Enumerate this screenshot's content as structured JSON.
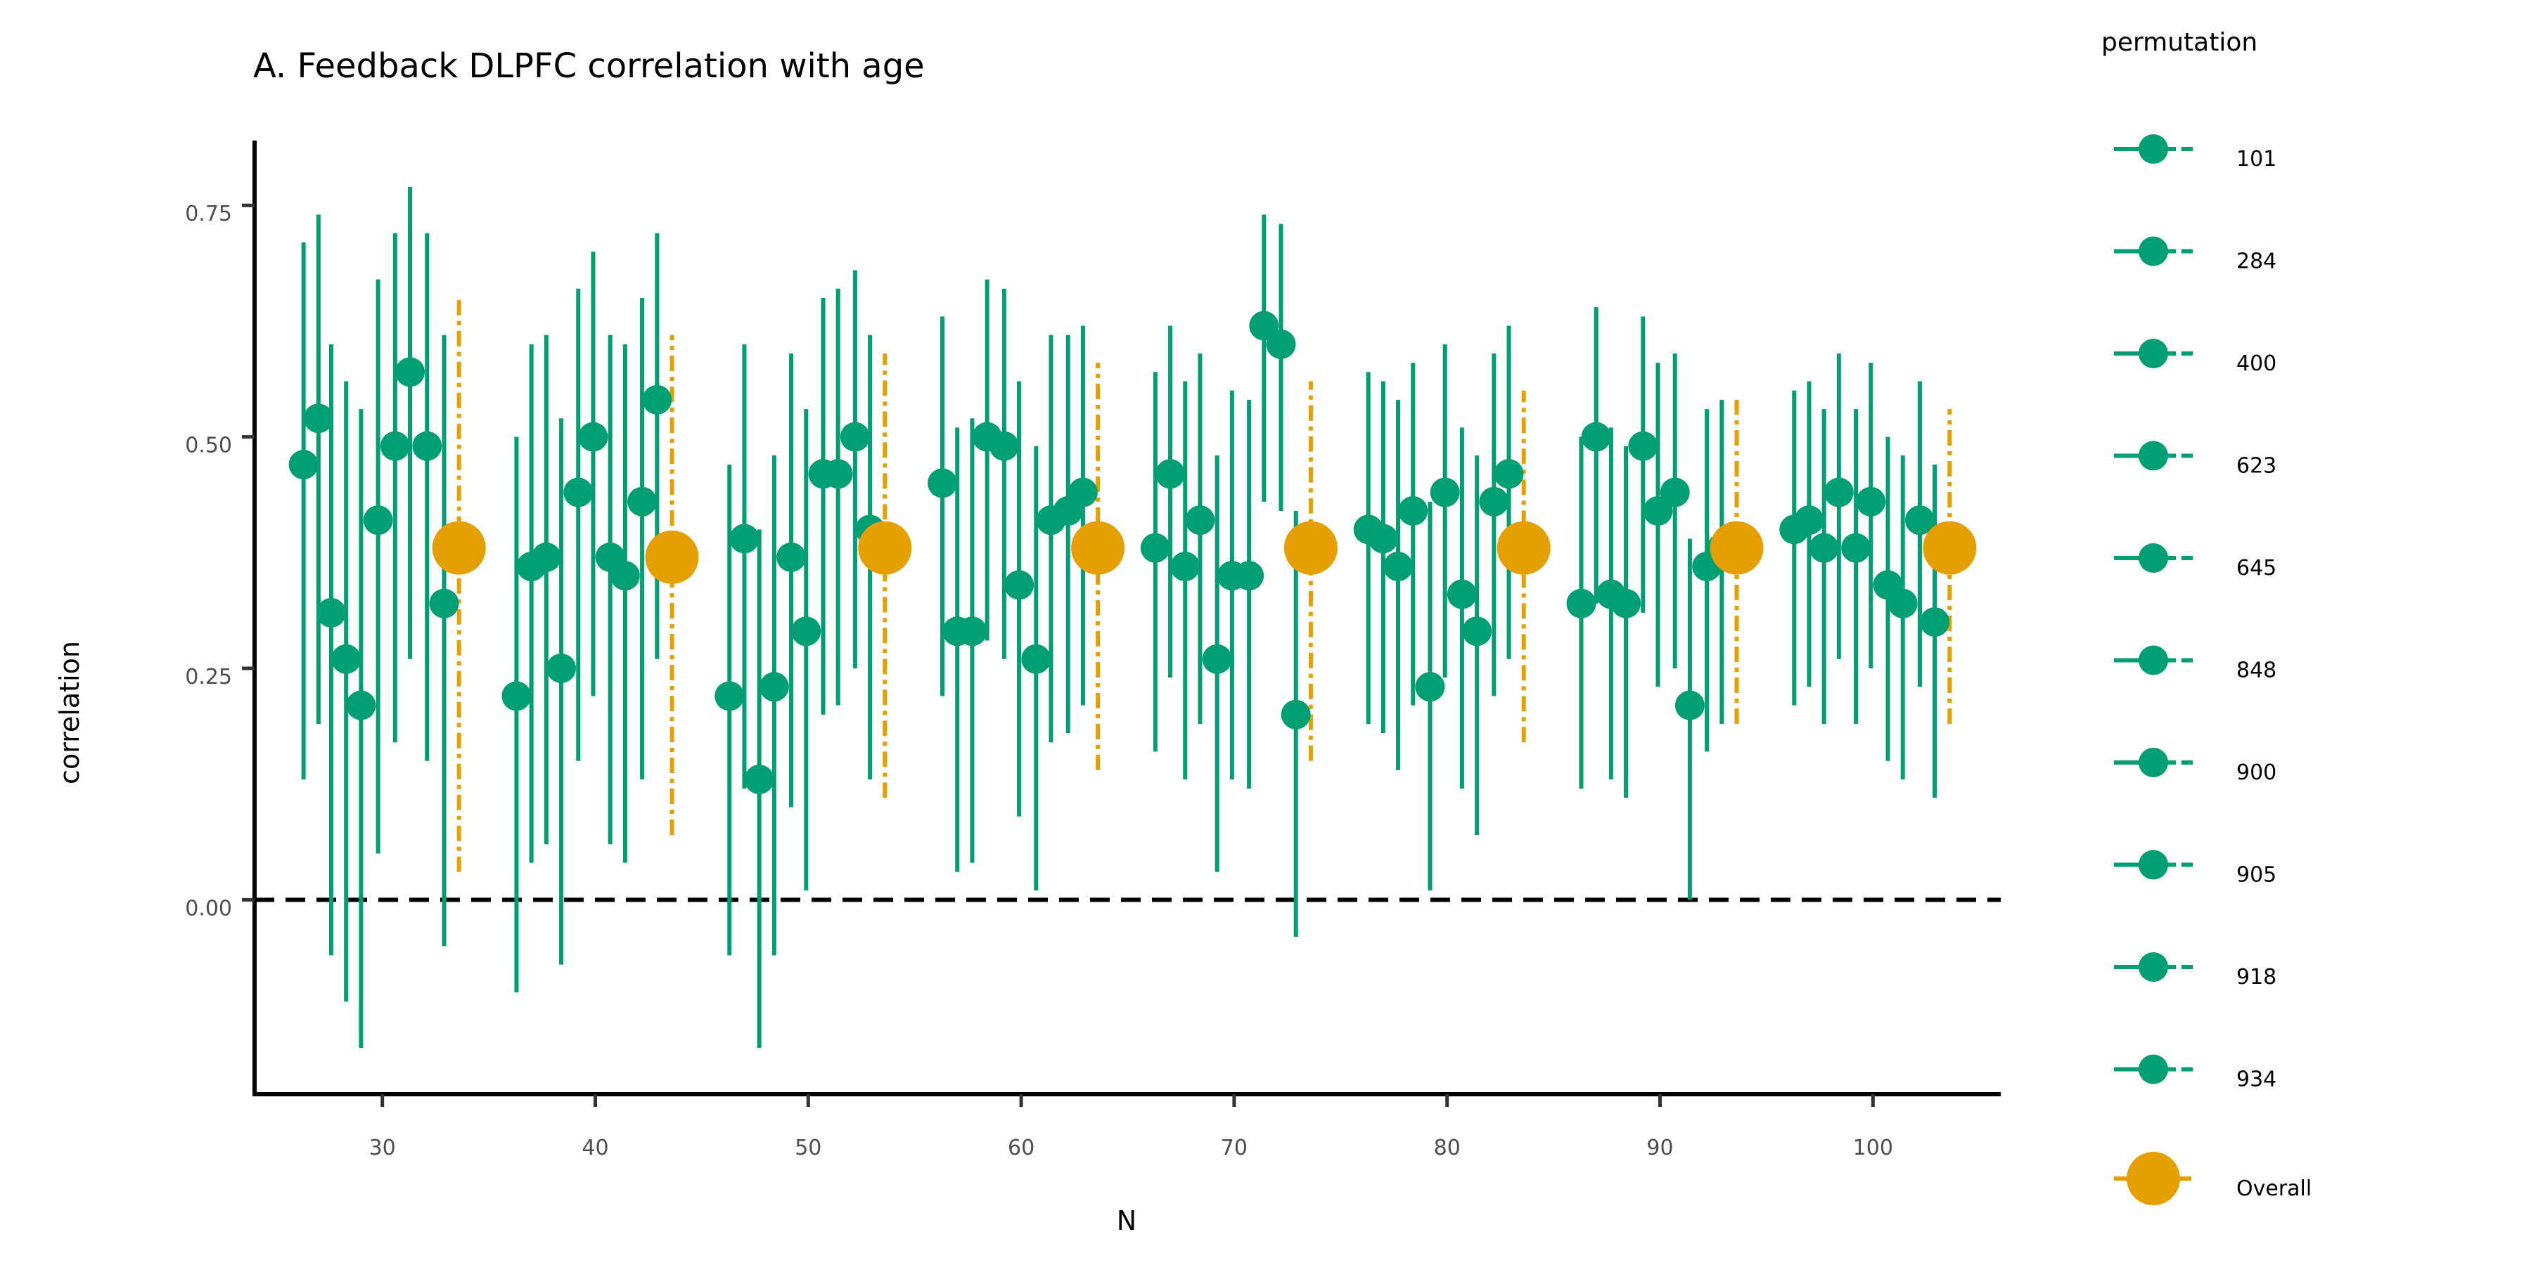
{
  "chart_data": {
    "type": "scatter",
    "title": "A. Feedback DLPFC correlation with age",
    "xlabel": "N",
    "ylabel": "correlation",
    "xlim": [
      24,
      106
    ],
    "ylim": [
      -0.21,
      0.82
    ],
    "x_ticks": [
      "30",
      "40",
      "50",
      "60",
      "70",
      "80",
      "90",
      "100"
    ],
    "x_tick_values": [
      30,
      40,
      50,
      60,
      70,
      80,
      90,
      100
    ],
    "y_ticks": [
      "0.00",
      "0.25",
      "0.50",
      "0.75"
    ],
    "y_tick_values": [
      0,
      0.25,
      0.5,
      0.75
    ],
    "reference_line": {
      "y": 0,
      "style": "dashed",
      "color": "#000000"
    },
    "grid": false,
    "legend": {
      "title": "permutation",
      "position": "right",
      "entries": [
        "101",
        "284",
        "400",
        "623",
        "645",
        "848",
        "900",
        "905",
        "918",
        "934",
        "Overall"
      ]
    },
    "colors": {
      "permutation": "#009E73",
      "overall": "#E69F00"
    },
    "groups": [
      {
        "N": 30,
        "overall": {
          "x": 33.6,
          "y": 0.38,
          "lo": 0.03,
          "hi": 0.65
        },
        "points": [
          {
            "x": 26.3,
            "y": 0.47,
            "lo": 0.13,
            "hi": 0.71
          },
          {
            "x": 27.0,
            "y": 0.52,
            "lo": 0.19,
            "hi": 0.74
          },
          {
            "x": 27.6,
            "y": 0.31,
            "lo": -0.06,
            "hi": 0.6
          },
          {
            "x": 28.3,
            "y": 0.26,
            "lo": -0.11,
            "hi": 0.56
          },
          {
            "x": 29.0,
            "y": 0.21,
            "lo": -0.16,
            "hi": 0.53
          },
          {
            "x": 29.8,
            "y": 0.41,
            "lo": 0.05,
            "hi": 0.67
          },
          {
            "x": 30.6,
            "y": 0.49,
            "lo": 0.17,
            "hi": 0.72
          },
          {
            "x": 31.3,
            "y": 0.57,
            "lo": 0.26,
            "hi": 0.77
          },
          {
            "x": 32.1,
            "y": 0.49,
            "lo": 0.15,
            "hi": 0.72
          },
          {
            "x": 32.9,
            "y": 0.32,
            "lo": -0.05,
            "hi": 0.61
          }
        ]
      },
      {
        "N": 40,
        "overall": {
          "x": 43.6,
          "y": 0.37,
          "lo": 0.07,
          "hi": 0.61
        },
        "points": [
          {
            "x": 36.3,
            "y": 0.22,
            "lo": -0.1,
            "hi": 0.5
          },
          {
            "x": 37.0,
            "y": 0.36,
            "lo": 0.04,
            "hi": 0.6
          },
          {
            "x": 37.7,
            "y": 0.37,
            "lo": 0.06,
            "hi": 0.61
          },
          {
            "x": 38.4,
            "y": 0.25,
            "lo": -0.07,
            "hi": 0.52
          },
          {
            "x": 39.2,
            "y": 0.44,
            "lo": 0.15,
            "hi": 0.66
          },
          {
            "x": 39.9,
            "y": 0.5,
            "lo": 0.22,
            "hi": 0.7
          },
          {
            "x": 40.7,
            "y": 0.37,
            "lo": 0.06,
            "hi": 0.61
          },
          {
            "x": 41.4,
            "y": 0.35,
            "lo": 0.04,
            "hi": 0.6
          },
          {
            "x": 42.2,
            "y": 0.43,
            "lo": 0.13,
            "hi": 0.65
          },
          {
            "x": 42.9,
            "y": 0.54,
            "lo": 0.26,
            "hi": 0.72
          }
        ]
      },
      {
        "N": 50,
        "overall": {
          "x": 53.6,
          "y": 0.38,
          "lo": 0.11,
          "hi": 0.59
        },
        "points": [
          {
            "x": 46.3,
            "y": 0.22,
            "lo": -0.06,
            "hi": 0.47
          },
          {
            "x": 47.0,
            "y": 0.39,
            "lo": 0.12,
            "hi": 0.6
          },
          {
            "x": 47.7,
            "y": 0.13,
            "lo": -0.16,
            "hi": 0.4
          },
          {
            "x": 48.4,
            "y": 0.23,
            "lo": -0.06,
            "hi": 0.48
          },
          {
            "x": 49.2,
            "y": 0.37,
            "lo": 0.1,
            "hi": 0.59
          },
          {
            "x": 49.9,
            "y": 0.29,
            "lo": 0.01,
            "hi": 0.53
          },
          {
            "x": 50.7,
            "y": 0.46,
            "lo": 0.2,
            "hi": 0.65
          },
          {
            "x": 51.4,
            "y": 0.46,
            "lo": 0.21,
            "hi": 0.66
          },
          {
            "x": 52.2,
            "y": 0.5,
            "lo": 0.25,
            "hi": 0.68
          },
          {
            "x": 52.9,
            "y": 0.4,
            "lo": 0.13,
            "hi": 0.61
          }
        ]
      },
      {
        "N": 60,
        "overall": {
          "x": 63.6,
          "y": 0.38,
          "lo": 0.14,
          "hi": 0.58
        },
        "points": [
          {
            "x": 56.3,
            "y": 0.45,
            "lo": 0.22,
            "hi": 0.63
          },
          {
            "x": 57.0,
            "y": 0.29,
            "lo": 0.03,
            "hi": 0.51
          },
          {
            "x": 57.7,
            "y": 0.29,
            "lo": 0.04,
            "hi": 0.52
          },
          {
            "x": 58.4,
            "y": 0.5,
            "lo": 0.28,
            "hi": 0.67
          },
          {
            "x": 59.2,
            "y": 0.49,
            "lo": 0.26,
            "hi": 0.66
          },
          {
            "x": 59.9,
            "y": 0.34,
            "lo": 0.09,
            "hi": 0.56
          },
          {
            "x": 60.7,
            "y": 0.26,
            "lo": 0.01,
            "hi": 0.49
          },
          {
            "x": 61.4,
            "y": 0.41,
            "lo": 0.17,
            "hi": 0.61
          },
          {
            "x": 62.2,
            "y": 0.42,
            "lo": 0.18,
            "hi": 0.61
          },
          {
            "x": 62.9,
            "y": 0.44,
            "lo": 0.21,
            "hi": 0.62
          }
        ]
      },
      {
        "N": 70,
        "overall": {
          "x": 73.6,
          "y": 0.38,
          "lo": 0.15,
          "hi": 0.56
        },
        "points": [
          {
            "x": 66.3,
            "y": 0.38,
            "lo": 0.16,
            "hi": 0.57
          },
          {
            "x": 67.0,
            "y": 0.46,
            "lo": 0.24,
            "hi": 0.62
          },
          {
            "x": 67.7,
            "y": 0.36,
            "lo": 0.13,
            "hi": 0.56
          },
          {
            "x": 68.4,
            "y": 0.41,
            "lo": 0.19,
            "hi": 0.59
          },
          {
            "x": 69.2,
            "y": 0.26,
            "lo": 0.03,
            "hi": 0.48
          },
          {
            "x": 69.9,
            "y": 0.35,
            "lo": 0.13,
            "hi": 0.55
          },
          {
            "x": 70.7,
            "y": 0.35,
            "lo": 0.12,
            "hi": 0.54
          },
          {
            "x": 71.4,
            "y": 0.62,
            "lo": 0.43,
            "hi": 0.74
          },
          {
            "x": 72.2,
            "y": 0.6,
            "lo": 0.42,
            "hi": 0.73
          },
          {
            "x": 72.9,
            "y": 0.2,
            "lo": -0.04,
            "hi": 0.42
          }
        ]
      },
      {
        "N": 80,
        "overall": {
          "x": 83.6,
          "y": 0.38,
          "lo": 0.17,
          "hi": 0.55
        },
        "points": [
          {
            "x": 76.3,
            "y": 0.4,
            "lo": 0.19,
            "hi": 0.57
          },
          {
            "x": 77.0,
            "y": 0.39,
            "lo": 0.18,
            "hi": 0.56
          },
          {
            "x": 77.7,
            "y": 0.36,
            "lo": 0.14,
            "hi": 0.54
          },
          {
            "x": 78.4,
            "y": 0.42,
            "lo": 0.21,
            "hi": 0.58
          },
          {
            "x": 79.2,
            "y": 0.23,
            "lo": 0.01,
            "hi": 0.43
          },
          {
            "x": 79.9,
            "y": 0.44,
            "lo": 0.24,
            "hi": 0.6
          },
          {
            "x": 80.7,
            "y": 0.33,
            "lo": 0.12,
            "hi": 0.51
          },
          {
            "x": 81.4,
            "y": 0.29,
            "lo": 0.07,
            "hi": 0.48
          },
          {
            "x": 82.2,
            "y": 0.43,
            "lo": 0.22,
            "hi": 0.59
          },
          {
            "x": 82.9,
            "y": 0.46,
            "lo": 0.26,
            "hi": 0.62
          }
        ]
      },
      {
        "N": 90,
        "overall": {
          "x": 93.6,
          "y": 0.38,
          "lo": 0.19,
          "hi": 0.54
        },
        "points": [
          {
            "x": 86.3,
            "y": 0.32,
            "lo": 0.12,
            "hi": 0.5
          },
          {
            "x": 87.0,
            "y": 0.5,
            "lo": 0.32,
            "hi": 0.64
          },
          {
            "x": 87.7,
            "y": 0.33,
            "lo": 0.13,
            "hi": 0.51
          },
          {
            "x": 88.4,
            "y": 0.32,
            "lo": 0.11,
            "hi": 0.49
          },
          {
            "x": 89.2,
            "y": 0.49,
            "lo": 0.31,
            "hi": 0.63
          },
          {
            "x": 89.9,
            "y": 0.42,
            "lo": 0.23,
            "hi": 0.58
          },
          {
            "x": 90.7,
            "y": 0.44,
            "lo": 0.25,
            "hi": 0.59
          },
          {
            "x": 91.4,
            "y": 0.21,
            "lo": 0.0,
            "hi": 0.39
          },
          {
            "x": 92.2,
            "y": 0.36,
            "lo": 0.16,
            "hi": 0.53
          },
          {
            "x": 92.9,
            "y": 0.38,
            "lo": 0.19,
            "hi": 0.54
          }
        ]
      },
      {
        "N": 100,
        "overall": {
          "x": 103.6,
          "y": 0.38,
          "lo": 0.19,
          "hi": 0.53
        },
        "points": [
          {
            "x": 96.3,
            "y": 0.4,
            "lo": 0.21,
            "hi": 0.55
          },
          {
            "x": 97.0,
            "y": 0.41,
            "lo": 0.23,
            "hi": 0.56
          },
          {
            "x": 97.7,
            "y": 0.38,
            "lo": 0.19,
            "hi": 0.53
          },
          {
            "x": 98.4,
            "y": 0.44,
            "lo": 0.26,
            "hi": 0.59
          },
          {
            "x": 99.2,
            "y": 0.38,
            "lo": 0.19,
            "hi": 0.53
          },
          {
            "x": 99.9,
            "y": 0.43,
            "lo": 0.25,
            "hi": 0.58
          },
          {
            "x": 100.7,
            "y": 0.34,
            "lo": 0.15,
            "hi": 0.5
          },
          {
            "x": 101.4,
            "y": 0.32,
            "lo": 0.13,
            "hi": 0.48
          },
          {
            "x": 102.2,
            "y": 0.41,
            "lo": 0.23,
            "hi": 0.56
          },
          {
            "x": 102.9,
            "y": 0.3,
            "lo": 0.11,
            "hi": 0.47
          }
        ]
      }
    ]
  }
}
